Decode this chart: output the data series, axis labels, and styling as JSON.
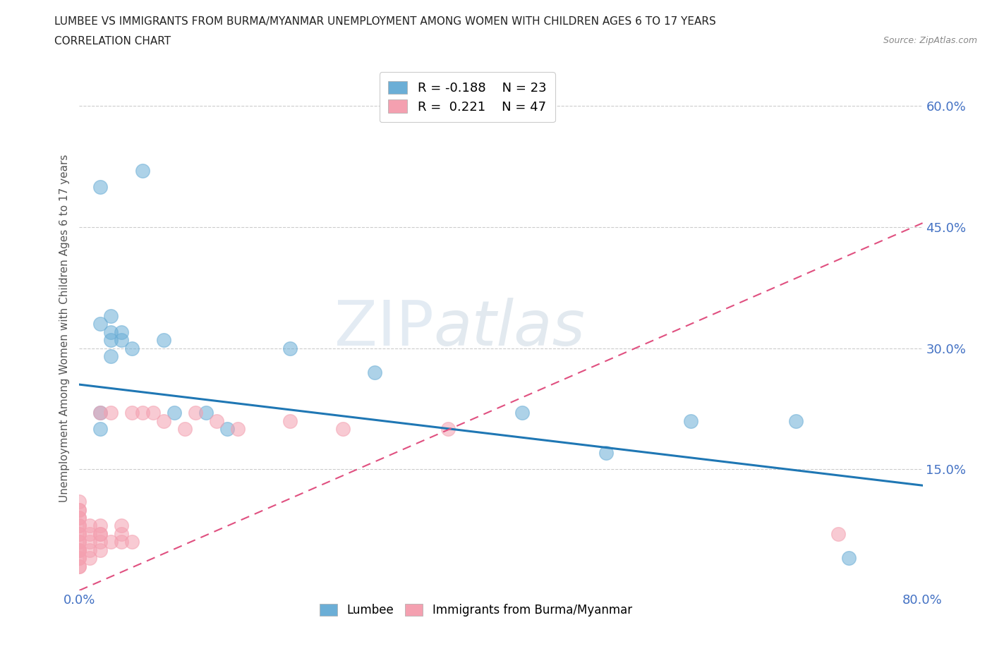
{
  "title_line1": "LUMBEE VS IMMIGRANTS FROM BURMA/MYANMAR UNEMPLOYMENT AMONG WOMEN WITH CHILDREN AGES 6 TO 17 YEARS",
  "title_line2": "CORRELATION CHART",
  "source_text": "Source: ZipAtlas.com",
  "ylabel": "Unemployment Among Women with Children Ages 6 to 17 years",
  "xlim": [
    0.0,
    0.8
  ],
  "ylim": [
    0.0,
    0.65
  ],
  "xticks": [
    0.0,
    0.1,
    0.2,
    0.3,
    0.4,
    0.5,
    0.6,
    0.7,
    0.8
  ],
  "xticklabels": [
    "0.0%",
    "",
    "",
    "",
    "",
    "",
    "",
    "",
    "80.0%"
  ],
  "ytick_positions": [
    0.15,
    0.3,
    0.45,
    0.6
  ],
  "ytick_labels": [
    "15.0%",
    "30.0%",
    "45.0%",
    "60.0%"
  ],
  "lumbee_color": "#6baed6",
  "lumbee_line_color": "#1f77b4",
  "immigrant_color": "#f4a0b0",
  "immigrant_line_color": "#e05080",
  "immigrant_line_dashed_color": "#e07090",
  "lumbee_R": -0.188,
  "lumbee_N": 23,
  "immigrant_R": 0.221,
  "immigrant_N": 47,
  "watermark": "ZIPatlas",
  "lumbee_x": [
    0.02,
    0.03,
    0.03,
    0.03,
    0.03,
    0.04,
    0.04,
    0.05,
    0.06,
    0.08,
    0.09,
    0.12,
    0.14,
    0.2,
    0.28,
    0.42,
    0.5,
    0.58,
    0.68,
    0.73,
    0.02,
    0.02,
    0.02
  ],
  "lumbee_y": [
    0.33,
    0.34,
    0.32,
    0.31,
    0.29,
    0.32,
    0.31,
    0.3,
    0.52,
    0.31,
    0.22,
    0.22,
    0.2,
    0.3,
    0.27,
    0.22,
    0.17,
    0.21,
    0.21,
    0.04,
    0.22,
    0.5,
    0.2
  ],
  "immigrant_x": [
    0.0,
    0.0,
    0.0,
    0.0,
    0.0,
    0.0,
    0.0,
    0.0,
    0.0,
    0.0,
    0.0,
    0.0,
    0.0,
    0.0,
    0.0,
    0.0,
    0.0,
    0.0,
    0.01,
    0.01,
    0.01,
    0.01,
    0.01,
    0.02,
    0.02,
    0.02,
    0.02,
    0.02,
    0.02,
    0.03,
    0.03,
    0.04,
    0.04,
    0.04,
    0.05,
    0.05,
    0.06,
    0.07,
    0.08,
    0.1,
    0.11,
    0.13,
    0.15,
    0.2,
    0.25,
    0.35,
    0.72
  ],
  "immigrant_y": [
    0.03,
    0.04,
    0.05,
    0.05,
    0.06,
    0.07,
    0.08,
    0.08,
    0.09,
    0.09,
    0.1,
    0.1,
    0.11,
    0.03,
    0.04,
    0.05,
    0.06,
    0.07,
    0.04,
    0.05,
    0.06,
    0.07,
    0.08,
    0.05,
    0.06,
    0.07,
    0.07,
    0.08,
    0.22,
    0.06,
    0.22,
    0.06,
    0.07,
    0.08,
    0.06,
    0.22,
    0.22,
    0.22,
    0.21,
    0.2,
    0.22,
    0.21,
    0.2,
    0.21,
    0.2,
    0.2,
    0.07
  ],
  "background_color": "#ffffff",
  "grid_color": "#cccccc"
}
